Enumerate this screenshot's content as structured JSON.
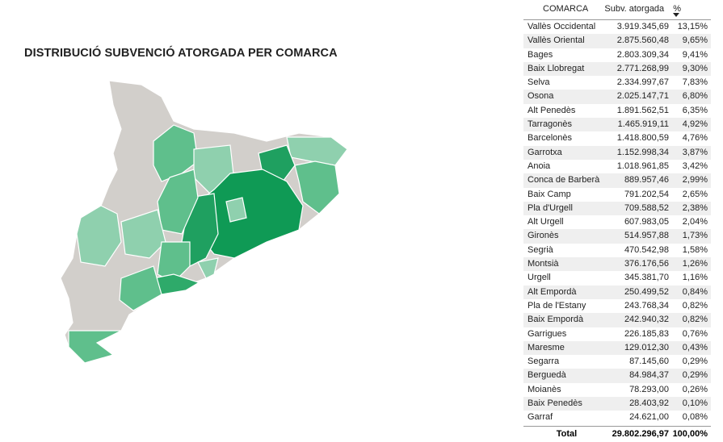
{
  "header": {
    "title": "DISTRIBUCIÓ SUBVENCIÓ ATORGADA PER COMARCA"
  },
  "table": {
    "columns": [
      "COMARCA",
      "Subv. atorgada",
      "%"
    ],
    "rows": [
      [
        "Vallès Occidental",
        "3.919.345,69",
        "13,15%"
      ],
      [
        "Vallès Oriental",
        "2.875.560,48",
        "9,65%"
      ],
      [
        "Bages",
        "2.803.309,34",
        "9,41%"
      ],
      [
        "Baix Llobregat",
        "2.771.268,99",
        "9,30%"
      ],
      [
        "Selva",
        "2.334.997,67",
        "7,83%"
      ],
      [
        "Osona",
        "2.025.147,71",
        "6,80%"
      ],
      [
        "Alt Penedès",
        "1.891.562,51",
        "6,35%"
      ],
      [
        "Tarragonès",
        "1.465.919,11",
        "4,92%"
      ],
      [
        "Barcelonès",
        "1.418.800,59",
        "4,76%"
      ],
      [
        "Garrotxa",
        "1.152.998,34",
        "3,87%"
      ],
      [
        "Anoia",
        "1.018.961,85",
        "3,42%"
      ],
      [
        "Conca de Barberà",
        "889.957,46",
        "2,99%"
      ],
      [
        "Baix Camp",
        "791.202,54",
        "2,65%"
      ],
      [
        "Pla d'Urgell",
        "709.588,52",
        "2,38%"
      ],
      [
        "Alt Urgell",
        "607.983,05",
        "2,04%"
      ],
      [
        "Gironès",
        "514.957,88",
        "1,73%"
      ],
      [
        "Segrià",
        "470.542,98",
        "1,58%"
      ],
      [
        "Montsià",
        "376.176,56",
        "1,26%"
      ],
      [
        "Urgell",
        "345.381,70",
        "1,16%"
      ],
      [
        "Alt Empordà",
        "250.499,52",
        "0,84%"
      ],
      [
        "Pla de l'Estany",
        "243.768,34",
        "0,82%"
      ],
      [
        "Baix Empordà",
        "242.940,32",
        "0,82%"
      ],
      [
        "Garrigues",
        "226.185,83",
        "0,76%"
      ],
      [
        "Maresme",
        "129.012,30",
        "0,43%"
      ],
      [
        "Segarra",
        "87.145,60",
        "0,29%"
      ],
      [
        "Berguedà",
        "84.984,37",
        "0,29%"
      ],
      [
        "Moianès",
        "78.293,00",
        "0,26%"
      ],
      [
        "Baix Penedès",
        "28.403,92",
        "0,10%"
      ],
      [
        "Garraf",
        "24.621,00",
        "0,08%"
      ]
    ],
    "total": [
      "Total",
      "29.802.296,97",
      "100,00%"
    ]
  }
}
